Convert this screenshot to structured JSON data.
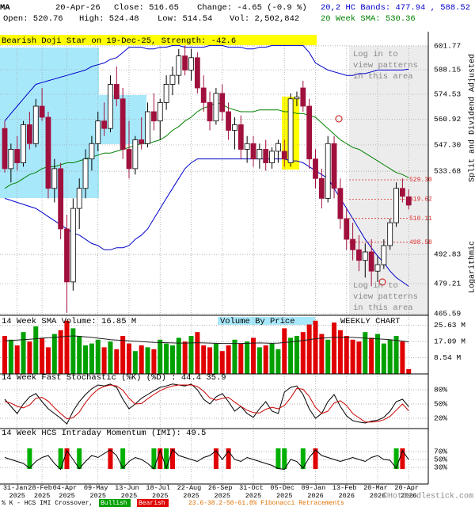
{
  "header": {
    "symbol": "MA",
    "date": "20-Apr-26",
    "close": "Close: 516.65",
    "change": "Change: -4.65 (-0.9 %)",
    "bands": "20,2 HC Bands: 477.94 , 588.52",
    "open": "Open: 520.76",
    "high": "High: 524.48",
    "low": "Low: 514.54",
    "vol": "Vol: 2,502,842",
    "sma": "20 Week SMA: 530.36",
    "adjusted": "Split and Dividend Adjusted",
    "scale": "Logarithmic"
  },
  "footer": {
    "crossover": "% K - HCS IMI Crossover,",
    "bullish": "Bullish",
    "bearish": "Bearish",
    "fib": "23.6-38.2-50-61.8% Fibonacci Retracements",
    "copyright": "©HotCandlestick.com"
  },
  "chart_data": [
    {
      "type": "candlestick",
      "title": "Bearish Doji Star on 19-Dec-25, Strength: -42.6",
      "login_note": [
        "Log in to",
        "view patterns",
        "in this area"
      ],
      "log_scale": true,
      "grid": true,
      "up_color": "#ffffff",
      "down_color": "#a0103c",
      "categories": [
        null,
        null,
        "31-Jan 2025",
        null,
        null,
        null,
        "28-Feb 2025",
        null,
        null,
        null,
        "04-Apr 2025",
        null,
        null,
        null,
        null,
        "09-May 2025",
        null,
        null,
        null,
        null,
        "13-Jun 2025",
        null,
        null,
        null,
        null,
        "18-Jul 2025",
        null,
        null,
        null,
        null,
        "22-Aug 2025",
        null,
        null,
        null,
        null,
        "26-Sep 2025",
        null,
        null,
        null,
        null,
        "31-Oct 2025",
        null,
        null,
        null,
        null,
        "05-Dec 2025",
        null,
        null,
        null,
        null,
        "09-Jan 2026",
        null,
        null,
        null,
        null,
        "13-Feb 2026",
        null,
        null,
        null,
        null,
        "20-Mar 2026",
        null,
        null,
        null,
        null,
        "20-Apr 2026"
      ],
      "open": [
        556,
        535,
        545,
        538,
        558,
        548,
        568,
        562,
        525,
        535,
        505,
        480,
        515,
        525,
        540,
        548,
        560,
        556,
        580,
        572,
        545,
        535,
        550,
        548,
        565,
        560,
        570,
        580,
        585,
        596,
        588,
        595,
        578,
        570,
        560,
        575,
        565,
        555,
        558,
        545,
        548,
        540,
        545,
        538,
        544,
        544,
        538,
        572,
        578,
        568,
        540,
        530,
        520,
        548,
        525,
        510,
        500,
        495,
        490,
        494,
        485,
        488,
        497,
        508,
        525,
        520.76
      ],
      "high": [
        560,
        548,
        552,
        560,
        565,
        572,
        578,
        565,
        540,
        538,
        512,
        520,
        530,
        545,
        552,
        565,
        570,
        585,
        590,
        578,
        560,
        552,
        562,
        570,
        575,
        572,
        585,
        590,
        600,
        602,
        600,
        598,
        585,
        576,
        578,
        580,
        570,
        562,
        563,
        552,
        552,
        548,
        550,
        546,
        550,
        550,
        575,
        576,
        582,
        572,
        545,
        535,
        552,
        552,
        530,
        515,
        508,
        502,
        498,
        500,
        492,
        500,
        510,
        528,
        530,
        524.48
      ],
      "low": [
        533,
        528,
        534,
        536,
        545,
        546,
        560,
        520,
        518,
        500,
        466,
        476,
        505,
        520,
        534,
        544,
        552,
        554,
        568,
        540,
        530,
        532,
        545,
        546,
        555,
        550,
        566,
        574,
        580,
        585,
        582,
        575,
        565,
        555,
        558,
        560,
        550,
        545,
        540,
        538,
        536,
        535,
        534,
        535,
        538,
        536,
        536,
        568,
        565,
        535,
        525,
        515,
        518,
        520,
        505,
        495,
        490,
        485,
        482,
        478,
        480,
        486,
        495,
        506,
        518,
        514.54
      ],
      "close": [
        535,
        545,
        538,
        558,
        548,
        568,
        562,
        525,
        535,
        505,
        480,
        515,
        525,
        540,
        548,
        560,
        556,
        580,
        572,
        545,
        535,
        550,
        548,
        565,
        560,
        570,
        580,
        585,
        596,
        588,
        595,
        578,
        570,
        560,
        575,
        565,
        555,
        558,
        545,
        548,
        540,
        545,
        538,
        544,
        548,
        540,
        572,
        573,
        568,
        540,
        530,
        520,
        548,
        525,
        510,
        500,
        495,
        490,
        494,
        485,
        488,
        497,
        508,
        525,
        521,
        516.65
      ],
      "series": [
        {
          "color": "#008000",
          "values": [
            525,
            527,
            528,
            530,
            532,
            533,
            535,
            536,
            536,
            537,
            538,
            538,
            539,
            540,
            541,
            542,
            543,
            543,
            544,
            545,
            546,
            547,
            548,
            548,
            549,
            550,
            552,
            555,
            557,
            560,
            562,
            565,
            567,
            568,
            570,
            569,
            567,
            566,
            565,
            565,
            565,
            566,
            566,
            566,
            566,
            565,
            565,
            564,
            564,
            563,
            562,
            559,
            556,
            553,
            550,
            548,
            546,
            545,
            543,
            541,
            539,
            537,
            535,
            533,
            532,
            530.36
          ]
        },
        {
          "color": "#0000cc",
          "values": [
            560,
            564,
            568,
            572,
            576,
            580,
            581,
            582,
            583,
            584,
            585,
            586,
            587,
            588,
            590,
            591,
            592,
            594,
            595,
            598,
            601,
            601,
            601,
            600,
            600,
            601,
            601,
            602,
            602,
            601,
            601,
            601,
            601,
            602,
            602,
            602,
            601,
            601,
            601,
            600,
            600,
            601,
            601,
            602,
            602,
            602,
            602,
            602,
            602,
            598,
            592,
            590,
            588,
            587,
            586,
            585,
            585,
            586,
            586,
            587,
            588,
            588,
            588,
            588,
            588,
            588.52
          ]
        },
        {
          "color": "#0000cc",
          "values": [
            520,
            519,
            518,
            517,
            516,
            515,
            513,
            511,
            509,
            507,
            505,
            503,
            502,
            500,
            498,
            497,
            495,
            495,
            496,
            496,
            497,
            500,
            502,
            505,
            510,
            515,
            520,
            525,
            530,
            535,
            538,
            540,
            540,
            540,
            540,
            540,
            540,
            540,
            540,
            540,
            540,
            540,
            540,
            540,
            540,
            540,
            539,
            539,
            538,
            536,
            534,
            532,
            530,
            525,
            520,
            515,
            510,
            505,
            500,
            496,
            492,
            489,
            485,
            482,
            480,
            477.94
          ]
        }
      ],
      "fib_levels": [
        {
          "value": 529.3,
          "label": "529.30"
        },
        519.62,
        510.11,
        498.58
      ],
      "fib_color": "#e03030",
      "ylim": [
        464.9,
        610
      ],
      "yticks": [
        601.77,
        588.15,
        574.53,
        560.92,
        {
          "value": 547.3,
          "label": "547.30"
        },
        533.68,
        492.83,
        479.21,
        465.59
      ]
    },
    {
      "type": "bar",
      "title": "14 Week SMA Volume: 16.85 M",
      "annotations": [
        "Volume By Price",
        "WEEKLY CHART"
      ],
      "up_color": "#00a000",
      "down_color": "#e00000",
      "sma_color": "#202020",
      "values": [
        20,
        18,
        15,
        22,
        17,
        25,
        19,
        14,
        21,
        23,
        28,
        24,
        20,
        15,
        16,
        18,
        14,
        17,
        13,
        20,
        16,
        12,
        15,
        14,
        13,
        18,
        16,
        15,
        19,
        17,
        20,
        22,
        15,
        14,
        16,
        12,
        15,
        18,
        16,
        17,
        19,
        14,
        15,
        16,
        13,
        24,
        19,
        20,
        22,
        26,
        28,
        21,
        18,
        27,
        23,
        20,
        18,
        17,
        22,
        19,
        21,
        16,
        18,
        20,
        17,
        2.5
      ],
      "sma": [
        17.5,
        17.6,
        17.8,
        18,
        18.2,
        18.5,
        18.8,
        19,
        19.2,
        19.5,
        19.8,
        20,
        19.8,
        19.5,
        19.2,
        18.8,
        18.4,
        18,
        17.8,
        17.6,
        17.4,
        17.2,
        17,
        16.8,
        16.6,
        16.5,
        16.4,
        16.3,
        16.2,
        16.2,
        16.3,
        16.4,
        16.3,
        16.2,
        16.1,
        16,
        16,
        16,
        16,
        16.1,
        16.2,
        16.3,
        16.2,
        16.1,
        16.2,
        16.5,
        16.8,
        17.2,
        17.6,
        18,
        18.5,
        18.8,
        19,
        19.2,
        19.3,
        19.3,
        19.2,
        19,
        18.8,
        18.6,
        18.4,
        18.2,
        18,
        17.6,
        17.3,
        16.85
      ],
      "ylim": [
        0,
        30
      ],
      "yticks": [
        {
          "value": 25.63,
          "label": "25.63 M"
        },
        {
          "value": 17.09,
          "label": "17.09 M"
        },
        {
          "value": 8.54,
          "label": "8.54 M"
        }
      ]
    },
    {
      "type": "line",
      "title": "14 Week Fast Stochastic (%K) (%D) : 44.4 35.9",
      "series": [
        {
          "color": "#000000",
          "values": [
            60,
            45,
            30,
            50,
            65,
            72,
            55,
            40,
            30,
            20,
            8,
            35,
            55,
            70,
            82,
            90,
            88,
            92,
            85,
            60,
            40,
            50,
            62,
            70,
            78,
            85,
            88,
            92,
            90,
            88,
            92,
            80,
            60,
            50,
            65,
            72,
            55,
            35,
            45,
            30,
            22,
            40,
            55,
            35,
            30,
            75,
            85,
            88,
            70,
            40,
            20,
            30,
            55,
            70,
            45,
            25,
            15,
            12,
            10,
            14,
            16,
            22,
            35,
            55,
            60,
            44.4
          ]
        },
        {
          "color": "#cc0000",
          "values": [
            55,
            52,
            45,
            42,
            48,
            62,
            64,
            56,
            42,
            30,
            19,
            21,
            33,
            53,
            69,
            81,
            87,
            90,
            88,
            79,
            62,
            50,
            51,
            61,
            70,
            78,
            84,
            88,
            90,
            90,
            90,
            87,
            77,
            63,
            58,
            62,
            64,
            54,
            45,
            37,
            32,
            31,
            39,
            43,
            40,
            47,
            63,
            83,
            81,
            66,
            43,
            30,
            35,
            52,
            57,
            47,
            30,
            21,
            12,
            12,
            13,
            17,
            24,
            37,
            50,
            35.9
          ]
        }
      ],
      "ylim": [
        0,
        100
      ],
      "yticks": [
        {
          "value": 80,
          "label": "80%"
        },
        {
          "value": 50,
          "label": "50%"
        },
        {
          "value": 20,
          "label": "20%"
        }
      ]
    },
    {
      "type": "line",
      "title": "14 Week HCS Intraday Momentum (IMI): 49.5",
      "signal_colors": [
        "#e00000",
        "#00b000"
      ],
      "series": [
        {
          "color": "#000000",
          "values": [
            55,
            50,
            45,
            40,
            28,
            45,
            55,
            60,
            40,
            25,
            72,
            50,
            27,
            45,
            60,
            55,
            65,
            74,
            60,
            28,
            45,
            55,
            50,
            40,
            26,
            73,
            28,
            75,
            60,
            55,
            50,
            45,
            55,
            60,
            72,
            50,
            71,
            50,
            45,
            55,
            50,
            45,
            40,
            35,
            27,
            25,
            50,
            45,
            28,
            55,
            74,
            60,
            55,
            50,
            45,
            50,
            55,
            50,
            45,
            55,
            60,
            50,
            48,
            28,
            72,
            49.5
          ]
        }
      ],
      "ylim": [
        0,
        100
      ],
      "yticks": [
        {
          "value": 70,
          "label": "70%"
        },
        {
          "value": 50,
          "label": "50%"
        },
        {
          "value": 30,
          "label": "30%"
        }
      ]
    }
  ]
}
